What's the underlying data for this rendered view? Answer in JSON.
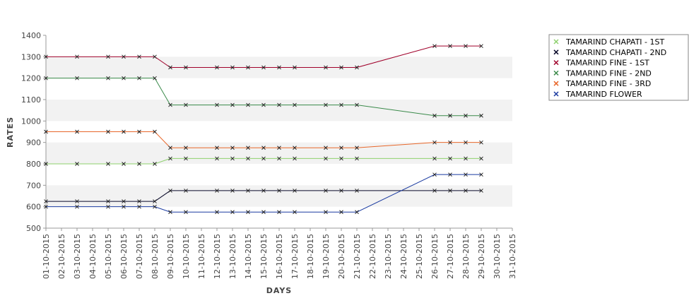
{
  "chart_data": {
    "type": "line",
    "xlabel": "DAYS",
    "ylabel": "RATES",
    "ylim": [
      500,
      1400
    ],
    "y_ticks": [
      500,
      600,
      700,
      800,
      900,
      1000,
      1100,
      1200,
      1300,
      1400
    ],
    "x_ticks": [
      "01-10-2015",
      "02-10-2015",
      "03-10-2015",
      "04-10-2015",
      "05-10-2015",
      "06-10-2015",
      "07-10-2015",
      "08-10-2015",
      "09-10-2015",
      "10-10-2015",
      "11-10-2015",
      "12-10-2015",
      "13-10-2015",
      "14-10-2015",
      "15-10-2015",
      "16-10-2015",
      "17-10-2015",
      "18-10-2015",
      "19-10-2015",
      "20-10-2015",
      "21-10-2015",
      "22-10-2015",
      "23-10-2015",
      "24-10-2015",
      "25-10-2015",
      "26-10-2015",
      "27-10-2015",
      "28-10-2015",
      "29-10-2015",
      "30-10-2015",
      "31-10-2015"
    ],
    "x": [
      "01-10-2015",
      "03-10-2015",
      "05-10-2015",
      "06-10-2015",
      "07-10-2015",
      "08-10-2015",
      "09-10-2015",
      "10-10-2015",
      "12-10-2015",
      "13-10-2015",
      "14-10-2015",
      "15-10-2015",
      "16-10-2015",
      "17-10-2015",
      "19-10-2015",
      "20-10-2015",
      "21-10-2015",
      "26-10-2015",
      "27-10-2015",
      "28-10-2015",
      "29-10-2015"
    ],
    "grid": "alternating horizontal bands",
    "legend_position": "right",
    "series": [
      {
        "name": "TAMARIND CHAPATI - 1ST",
        "color": "#8fd16e",
        "values": [
          800,
          800,
          800,
          800,
          800,
          800,
          825,
          825,
          825,
          825,
          825,
          825,
          825,
          825,
          825,
          825,
          825,
          825,
          825,
          825,
          825
        ]
      },
      {
        "name": "TAMARIND CHAPATI - 2ND",
        "color": "#0a0a2a",
        "values": [
          625,
          625,
          625,
          625,
          625,
          625,
          675,
          675,
          675,
          675,
          675,
          675,
          675,
          675,
          675,
          675,
          675,
          675,
          675,
          675,
          675
        ]
      },
      {
        "name": "TAMARIND FINE - 1ST",
        "color": "#a0002a",
        "values": [
          1300,
          1300,
          1300,
          1300,
          1300,
          1300,
          1250,
          1250,
          1250,
          1250,
          1250,
          1250,
          1250,
          1250,
          1250,
          1250,
          1250,
          1350,
          1350,
          1350,
          1350
        ]
      },
      {
        "name": "TAMARIND FINE - 2ND",
        "color": "#3a8a4a",
        "values": [
          1200,
          1200,
          1200,
          1200,
          1200,
          1200,
          1075,
          1075,
          1075,
          1075,
          1075,
          1075,
          1075,
          1075,
          1075,
          1075,
          1075,
          1025,
          1025,
          1025,
          1025
        ]
      },
      {
        "name": "TAMARIND FINE - 3RD",
        "color": "#e8672a",
        "values": [
          950,
          950,
          950,
          950,
          950,
          950,
          875,
          875,
          875,
          875,
          875,
          875,
          875,
          875,
          875,
          875,
          875,
          900,
          900,
          900,
          900
        ]
      },
      {
        "name": "TAMARIND FLOWER",
        "color": "#1a3aa0",
        "values": [
          600,
          600,
          600,
          600,
          600,
          600,
          575,
          575,
          575,
          575,
          575,
          575,
          575,
          575,
          575,
          575,
          575,
          750,
          750,
          750,
          750
        ]
      }
    ]
  }
}
